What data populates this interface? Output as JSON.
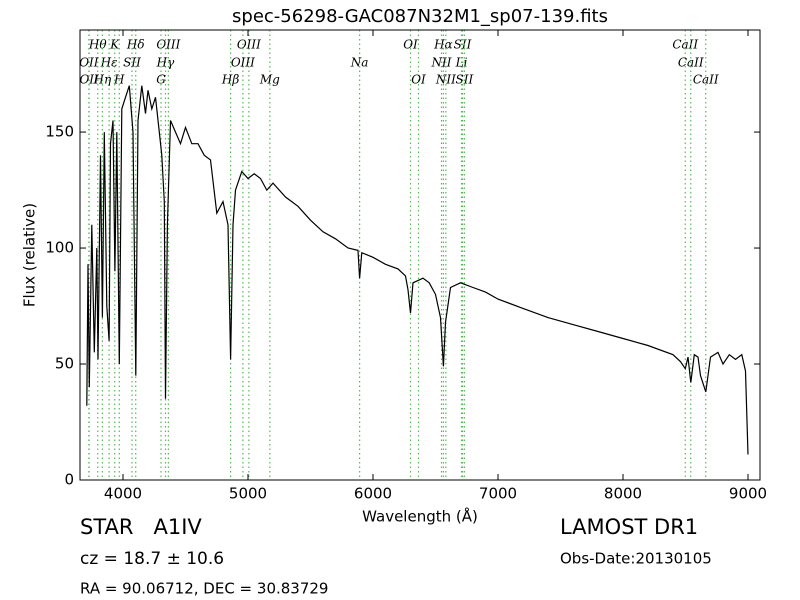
{
  "chart_data": {
    "type": "line",
    "title": "spec-56298-GAC087N32M1_sp07-139.fits",
    "x_label": "Wavelength (Å)",
    "y_label": "Flux (relative)",
    "xlim": [
      3656,
      9096
    ],
    "ylim": [
      0,
      194
    ],
    "xticks": [
      4000,
      5000,
      6000,
      7000,
      8000,
      9000
    ],
    "yticks": [
      0,
      50,
      100,
      150
    ],
    "color": "#000000",
    "x": [
      3710,
      3720,
      3730,
      3750,
      3770,
      3790,
      3800,
      3820,
      3835,
      3850,
      3870,
      3889,
      3900,
      3920,
      3935,
      3950,
      3970,
      3990,
      4020,
      4050,
      4080,
      4102,
      4120,
      4150,
      4180,
      4200,
      4230,
      4260,
      4290,
      4310,
      4330,
      4340,
      4355,
      4380,
      4420,
      4460,
      4500,
      4550,
      4600,
      4650,
      4700,
      4750,
      4800,
      4840,
      4861,
      4880,
      4900,
      4950,
      5000,
      5050,
      5100,
      5150,
      5200,
      5300,
      5400,
      5500,
      5600,
      5700,
      5800,
      5880,
      5893,
      5910,
      6000,
      6100,
      6200,
      6260,
      6280,
      6300,
      6320,
      6400,
      6450,
      6500,
      6540,
      6563,
      6580,
      6620,
      6700,
      6800,
      6900,
      7000,
      7200,
      7400,
      7600,
      7800,
      8000,
      8200,
      8400,
      8460,
      8498,
      8520,
      8542,
      8570,
      8600,
      8620,
      8662,
      8700,
      8760,
      8800,
      8850,
      8900,
      8950,
      8980,
      9000
    ],
    "values": [
      32,
      93,
      40,
      110,
      55,
      100,
      52,
      140,
      70,
      150,
      75,
      60,
      145,
      155,
      90,
      150,
      50,
      160,
      165,
      170,
      150,
      45,
      155,
      170,
      158,
      168,
      160,
      165,
      150,
      140,
      120,
      35,
      110,
      155,
      150,
      145,
      152,
      145,
      145,
      140,
      138,
      115,
      120,
      110,
      52,
      110,
      125,
      133,
      130,
      132,
      130,
      125,
      128,
      122,
      118,
      112,
      107,
      104,
      100,
      99,
      87,
      98,
      96,
      93,
      91,
      88,
      82,
      72,
      85,
      87,
      85,
      80,
      70,
      49,
      68,
      83,
      85,
      83,
      81,
      78,
      74,
      70,
      67,
      64,
      61,
      58,
      54,
      51,
      48,
      53,
      42,
      54,
      53,
      45,
      38,
      53,
      55,
      50,
      54,
      52,
      54,
      47,
      11
    ],
    "line_color": "#55bb55",
    "spectral_lines": [
      {
        "label": "Hθ",
        "wavelength": 3798
      },
      {
        "label": "K",
        "wavelength": 3934
      },
      {
        "label": "Hδ",
        "wavelength": 4102
      },
      {
        "label": "OIII",
        "wavelength": 4363
      },
      {
        "label": "OIII",
        "wavelength": 5007
      },
      {
        "label": "OI",
        "wavelength": 6300
      },
      {
        "label": "Hα",
        "wavelength": 6563
      },
      {
        "label": "SII",
        "wavelength": 6716
      },
      {
        "label": "CaII",
        "wavelength": 8498
      },
      {
        "label": "OII",
        "wavelength": 3727
      },
      {
        "label": "Hε",
        "wavelength": 3889
      },
      {
        "label": "SII",
        "wavelength": 4072
      },
      {
        "label": "Hγ",
        "wavelength": 4340
      },
      {
        "label": "OIII",
        "wavelength": 4959
      },
      {
        "label": "Na",
        "wavelength": 5893
      },
      {
        "label": "NII",
        "wavelength": 6548
      },
      {
        "label": "Li",
        "wavelength": 6708
      },
      {
        "label": "CaII",
        "wavelength": 8542
      },
      {
        "label": "OII",
        "wavelength": 3729
      },
      {
        "label": "Hη",
        "wavelength": 3835
      },
      {
        "label": "H",
        "wavelength": 3970
      },
      {
        "label": "G",
        "wavelength": 4304
      },
      {
        "label": "Hβ",
        "wavelength": 4861
      },
      {
        "label": "Mg",
        "wavelength": 5175
      },
      {
        "label": "OI",
        "wavelength": 6364
      },
      {
        "label": "NII",
        "wavelength": 6583
      },
      {
        "label": "SII",
        "wavelength": 6731
      },
      {
        "label": "CaII",
        "wavelength": 8662
      }
    ],
    "object_class": "STAR   A1IV",
    "redshift": "cz = 18.7 ± 10.6",
    "coordinates": "RA = 90.06712, DEC = 30.83729",
    "survey": "LAMOST DR1",
    "obs_date": "Obs-Date:20130105"
  }
}
